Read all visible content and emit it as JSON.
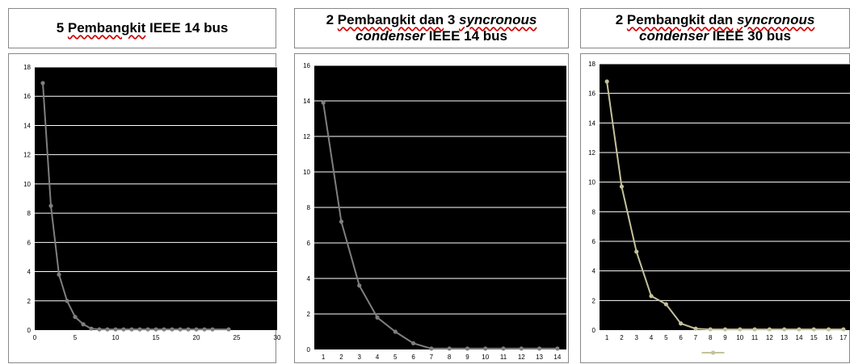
{
  "panels": [
    {
      "title_line1_a": "5 ",
      "title_line1_b": "Pembangkit",
      "title_line1_c": " IEEE 14 bus",
      "title_line2_a": "",
      "title_line2_b": ""
    },
    {
      "title_line1_a": "2 ",
      "title_line1_b": "Pembangkit dan",
      "title_line1_c": " 3 ",
      "title_line1_d": "syncronous",
      "title_line2_a": "condenser",
      "title_line2_b": " IEEE 14 bus"
    },
    {
      "title_line1_a": "2 ",
      "title_line1_b": "Pembangkit dan",
      "title_line1_c": " ",
      "title_line1_d": "syncronous",
      "title_line2_a": "condenser",
      "title_line2_b": " IEEE 30 bus"
    }
  ],
  "chart_data": [
    {
      "type": "line",
      "x": [
        1,
        2,
        3,
        4,
        5,
        6,
        7,
        8,
        9,
        10,
        11,
        12,
        13,
        14,
        15,
        16,
        17,
        18,
        19,
        20,
        21,
        22,
        24
      ],
      "series": [
        {
          "values": [
            16.9,
            8.5,
            3.8,
            2.0,
            0.9,
            0.4,
            0.1,
            0.05,
            0.05,
            0.05,
            0.05,
            0.05,
            0.05,
            0.05,
            0.05,
            0.05,
            0.05,
            0.05,
            0.05,
            0.05,
            0.05,
            0.05,
            0.05
          ],
          "color": "#7f7f7f"
        }
      ],
      "xlim": [
        0,
        30
      ],
      "ylim": [
        0,
        18
      ],
      "xticks": [
        "0",
        "5",
        "10",
        "15",
        "20",
        "25",
        "30"
      ],
      "yticks": [
        "0",
        "2",
        "4",
        "6",
        "8",
        "10",
        "12",
        "14",
        "16",
        "18"
      ],
      "plot_background": "#000000",
      "grid": true
    },
    {
      "type": "line",
      "x": [
        1,
        2,
        3,
        4,
        5,
        6,
        7,
        8,
        9,
        10,
        11,
        12,
        13,
        14
      ],
      "series": [
        {
          "values": [
            13.9,
            7.2,
            3.6,
            1.8,
            1.0,
            0.35,
            0.05,
            0.05,
            0.05,
            0.05,
            0.05,
            0.05,
            0.05,
            0.05
          ],
          "color": "#7f7f7f"
        }
      ],
      "xlim": [
        0.5,
        14.5
      ],
      "ylim": [
        0,
        16
      ],
      "xticks": [
        "1",
        "2",
        "3",
        "4",
        "5",
        "6",
        "7",
        "8",
        "9",
        "10",
        "11",
        "12",
        "13",
        "14"
      ],
      "yticks": [
        "0",
        "2",
        "4",
        "6",
        "8",
        "10",
        "12",
        "14",
        "16"
      ],
      "plot_background": "#000000",
      "grid": true
    },
    {
      "type": "line",
      "x": [
        1,
        2,
        3,
        4,
        5,
        6,
        7,
        8,
        9,
        10,
        11,
        12,
        13,
        14,
        15,
        16,
        17
      ],
      "series": [
        {
          "values": [
            16.8,
            9.7,
            5.3,
            2.3,
            1.75,
            0.45,
            0.1,
            0.05,
            0.05,
            0.05,
            0.05,
            0.05,
            0.05,
            0.05,
            0.05,
            0.05,
            0.05
          ],
          "color": "#c4c29b"
        }
      ],
      "xlim": [
        0.5,
        17.5
      ],
      "ylim": [
        0,
        18
      ],
      "xticks": [
        "1",
        "2",
        "3",
        "4",
        "5",
        "6",
        "7",
        "8",
        "9",
        "10",
        "11",
        "12",
        "13",
        "14",
        "15",
        "16",
        "17"
      ],
      "yticks": [
        "0",
        "2",
        "4",
        "6",
        "8",
        "10",
        "12",
        "14",
        "16",
        "18"
      ],
      "plot_background": "#000000",
      "grid": true,
      "legend_position": "bottom"
    }
  ]
}
